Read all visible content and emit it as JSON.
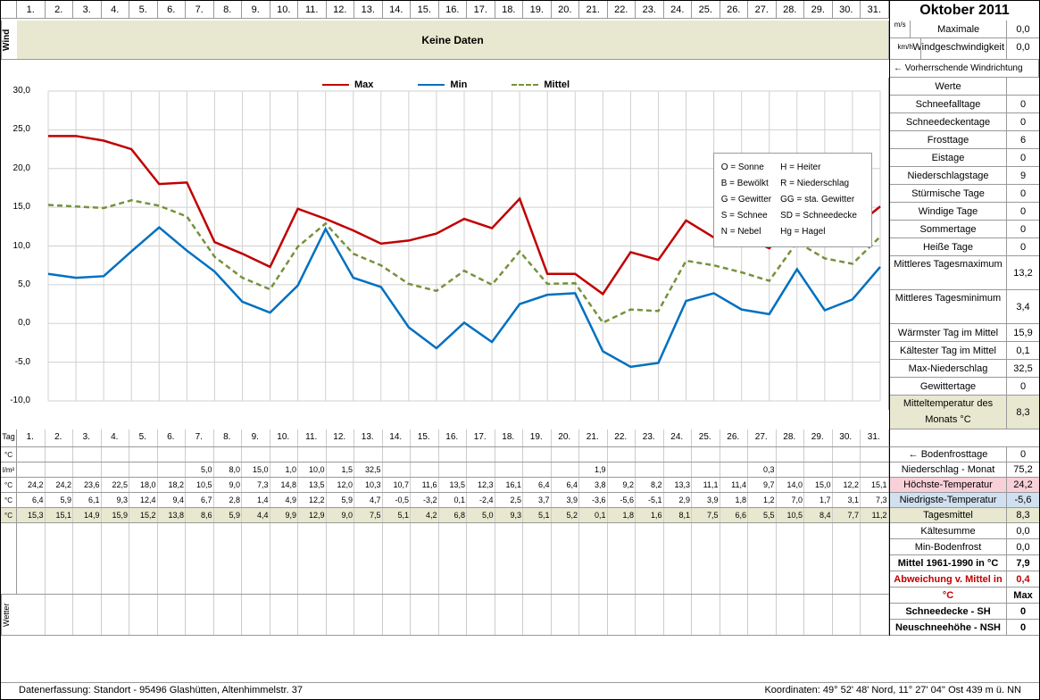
{
  "month_title": "Oktober 2011",
  "days": [
    "1.",
    "2.",
    "3.",
    "4.",
    "5.",
    "6.",
    "7.",
    "8.",
    "9.",
    "10.",
    "11.",
    "12.",
    "13.",
    "14.",
    "15.",
    "16.",
    "17.",
    "18.",
    "19.",
    "20.",
    "21.",
    "22.",
    "23.",
    "24.",
    "25.",
    "26.",
    "27.",
    "28.",
    "29.",
    "30.",
    "31."
  ],
  "wind": {
    "label": "Wind",
    "no_data": "Keine Daten",
    "max_label": "Maximale Windgeschwindigkeit",
    "ms_unit": "m/s",
    "ms_value": "0,0",
    "kmh_unit": "km/h",
    "kmh_value": "0,0",
    "direction_label": "← Vorherrschende Windrichtung"
  },
  "chart": {
    "type": "line",
    "legend": {
      "max": "Max",
      "min": "Min",
      "mittel": "Mittel"
    },
    "colors": {
      "max": "#c00000",
      "min": "#0070c0",
      "mittel": "#76923c",
      "grid": "#d0d0d0",
      "bg": "#ffffff"
    },
    "ylim": [
      -10,
      30
    ],
    "ytick_step": 5,
    "y_ticks": [
      "30,0",
      "25,0",
      "20,0",
      "15,0",
      "10,0",
      "5,0",
      "0,0",
      "-5,0",
      "-10,0"
    ],
    "max_values": [
      24.2,
      24.2,
      23.6,
      22.5,
      18.0,
      18.2,
      10.5,
      9.0,
      7.3,
      14.8,
      13.5,
      12.0,
      10.3,
      10.7,
      11.6,
      13.5,
      12.3,
      16.1,
      6.4,
      6.4,
      3.8,
      9.2,
      8.2,
      13.3,
      11.1,
      11.4,
      9.7,
      14.0,
      15.0,
      12.2,
      15.1
    ],
    "min_values": [
      6.4,
      5.9,
      6.1,
      9.3,
      12.4,
      9.4,
      6.7,
      2.8,
      1.4,
      4.9,
      12.2,
      5.9,
      4.7,
      -0.5,
      -3.2,
      0.1,
      -2.4,
      2.5,
      3.7,
      3.9,
      -3.6,
      -5.6,
      -5.1,
      2.9,
      3.9,
      1.8,
      1.2,
      7.0,
      1.7,
      3.1,
      7.3
    ],
    "mittel_values": [
      15.3,
      15.1,
      14.9,
      15.9,
      15.2,
      13.8,
      8.6,
      5.9,
      4.4,
      9.9,
      12.9,
      9.0,
      7.5,
      5.1,
      4.2,
      6.8,
      5.0,
      9.3,
      5.1,
      5.2,
      0.1,
      1.8,
      1.6,
      8.1,
      7.5,
      6.6,
      5.5,
      10.5,
      8.4,
      7.7,
      11.2
    ],
    "mittel_dash": "6,4",
    "line_width": 2.5,
    "symbols": [
      [
        "O",
        "=",
        "Sonne"
      ],
      [
        "B",
        "=",
        "Bewölkt"
      ],
      [
        "G",
        "=",
        "Gewitter"
      ],
      [
        "S",
        "=",
        "Schnee"
      ],
      [
        "N",
        "=",
        "Nebel"
      ],
      [
        "H",
        "=",
        "Heiter"
      ],
      [
        "R",
        "=",
        "Niederschlag"
      ],
      [
        "GG",
        "=",
        "sta. Gewitter"
      ],
      [
        "SD",
        "=",
        "Schneedecke"
      ],
      [
        "Hg",
        "=",
        "Hagel"
      ]
    ]
  },
  "stats": [
    {
      "label": "Werte",
      "value": ""
    },
    {
      "label": "Schneefalltage",
      "value": "0"
    },
    {
      "label": "Schneedeckentage",
      "value": "0"
    },
    {
      "label": "Frosttage",
      "value": "6"
    },
    {
      "label": "Eistage",
      "value": "0"
    },
    {
      "label": "Niederschlagstage",
      "value": "9"
    },
    {
      "label": "Stürmische Tage",
      "value": "0"
    },
    {
      "label": "Windige Tage",
      "value": "0"
    },
    {
      "label": "Sommertage",
      "value": "0"
    },
    {
      "label": "Heiße Tage",
      "value": "0"
    },
    {
      "label": "Mittleres Tagesmaximum",
      "value": "13,2",
      "tall": true
    },
    {
      "label": "Mittleres Tagesminimum",
      "value": "3,4",
      "tall": true
    },
    {
      "label": "Wärmster Tag im Mittel",
      "value": "15,9"
    },
    {
      "label": "Kältester Tag im Mittel",
      "value": "0,1"
    },
    {
      "label": "Max-Niederschlag",
      "value": "32,5"
    },
    {
      "label": "Gewittertage",
      "value": "0"
    },
    {
      "label": "Mitteltemperatur des Monats °C",
      "value": "8,3",
      "tall": true,
      "hl": "highlight-green"
    }
  ],
  "tag_row_label": "Tag",
  "data_rows": [
    {
      "unit": "°C",
      "label": "",
      "values": [
        "",
        "",
        "",
        "",
        "",
        "",
        "",
        "",
        "",
        "",
        "",
        "",
        "",
        "",
        "",
        "",
        "",
        "",
        "",
        "",
        "",
        "",
        "",
        "",
        "",
        "",
        "",
        "",
        "",
        "",
        ""
      ]
    },
    {
      "unit": "l/m²",
      "label": "",
      "values": [
        "",
        "",
        "",
        "",
        "",
        "",
        "5,0",
        "8,0",
        "15,0",
        "1,0",
        "10,0",
        "1,5",
        "32,5",
        "",
        "",
        "",
        "",
        "",
        "",
        "",
        "1,9",
        "",
        "",
        "",
        "",
        "",
        "0,3",
        "",
        "",
        "",
        ""
      ]
    },
    {
      "unit": "°C",
      "label": "",
      "values": [
        "24,2",
        "24,2",
        "23,6",
        "22,5",
        "18,0",
        "18,2",
        "10,5",
        "9,0",
        "7,3",
        "14,8",
        "13,5",
        "12,0",
        "10,3",
        "10,7",
        "11,6",
        "13,5",
        "12,3",
        "16,1",
        "6,4",
        "6,4",
        "3,8",
        "9,2",
        "8,2",
        "13,3",
        "11,1",
        "11,4",
        "9,7",
        "14,0",
        "15,0",
        "12,2",
        "15,1"
      ]
    },
    {
      "unit": "°C",
      "label": "",
      "values": [
        "6,4",
        "5,9",
        "6,1",
        "9,3",
        "12,4",
        "9,4",
        "6,7",
        "2,8",
        "1,4",
        "4,9",
        "12,2",
        "5,9",
        "4,7",
        "-0,5",
        "-3,2",
        "0,1",
        "-2,4",
        "2,5",
        "3,7",
        "3,9",
        "-3,6",
        "-5,6",
        "-5,1",
        "2,9",
        "3,9",
        "1,8",
        "1,2",
        "7,0",
        "1,7",
        "3,1",
        "7,3"
      ]
    },
    {
      "unit": "°C",
      "label": "",
      "values": [
        "15,3",
        "15,1",
        "14,9",
        "15,9",
        "15,2",
        "13,8",
        "8,6",
        "5,9",
        "4,4",
        "9,9",
        "12,9",
        "9,0",
        "7,5",
        "5,1",
        "4,2",
        "6,8",
        "5,0",
        "9,3",
        "5,1",
        "5,2",
        "0,1",
        "1,8",
        "1,6",
        "8,1",
        "7,5",
        "6,6",
        "5,5",
        "10,5",
        "8,4",
        "7,7",
        "11,2"
      ],
      "hl": "highlight-green"
    }
  ],
  "row_right": [
    {
      "label": "← Bodenfrosttage",
      "value": "0"
    },
    {
      "label": "Niederschlag - Monat",
      "value": "75,2"
    },
    {
      "label": "Höchste-Temperatur",
      "value": "24,2",
      "hl": "highlight-pink"
    },
    {
      "label": "Niedrigste-Temperatur",
      "value": "-5,6",
      "hl": "highlight-blue"
    },
    {
      "label": "Tagesmittel",
      "value": "8,3",
      "hl": "highlight-green"
    }
  ],
  "bottom_stats": [
    {
      "label": "Kältesumme",
      "value": "0,0"
    },
    {
      "label": "Min-Bodenfrost",
      "value": "0,0"
    },
    {
      "label": "Mittel 1961-1990 in °C",
      "value": "7,9",
      "bold": true
    },
    {
      "label": "Abweichung v. Mittel in °C",
      "value": "0,4",
      "red": true
    },
    {
      "label": "",
      "value": "Max",
      "bold": true
    },
    {
      "label": "Schneedecke - SH",
      "value": "0",
      "bold": true
    },
    {
      "label": "Neuschneehöhe - NSH",
      "value": "0",
      "bold": true
    }
  ],
  "footer": {
    "left": "Datenerfassung: Standort - 95496 Glashütten, Altenhimmelstr. 37",
    "right": "Koordinaten: 49° 52' 48' Nord,   11° 27' 04'' Ost   439 m ü. NN"
  },
  "wetter_label": "Wetter"
}
